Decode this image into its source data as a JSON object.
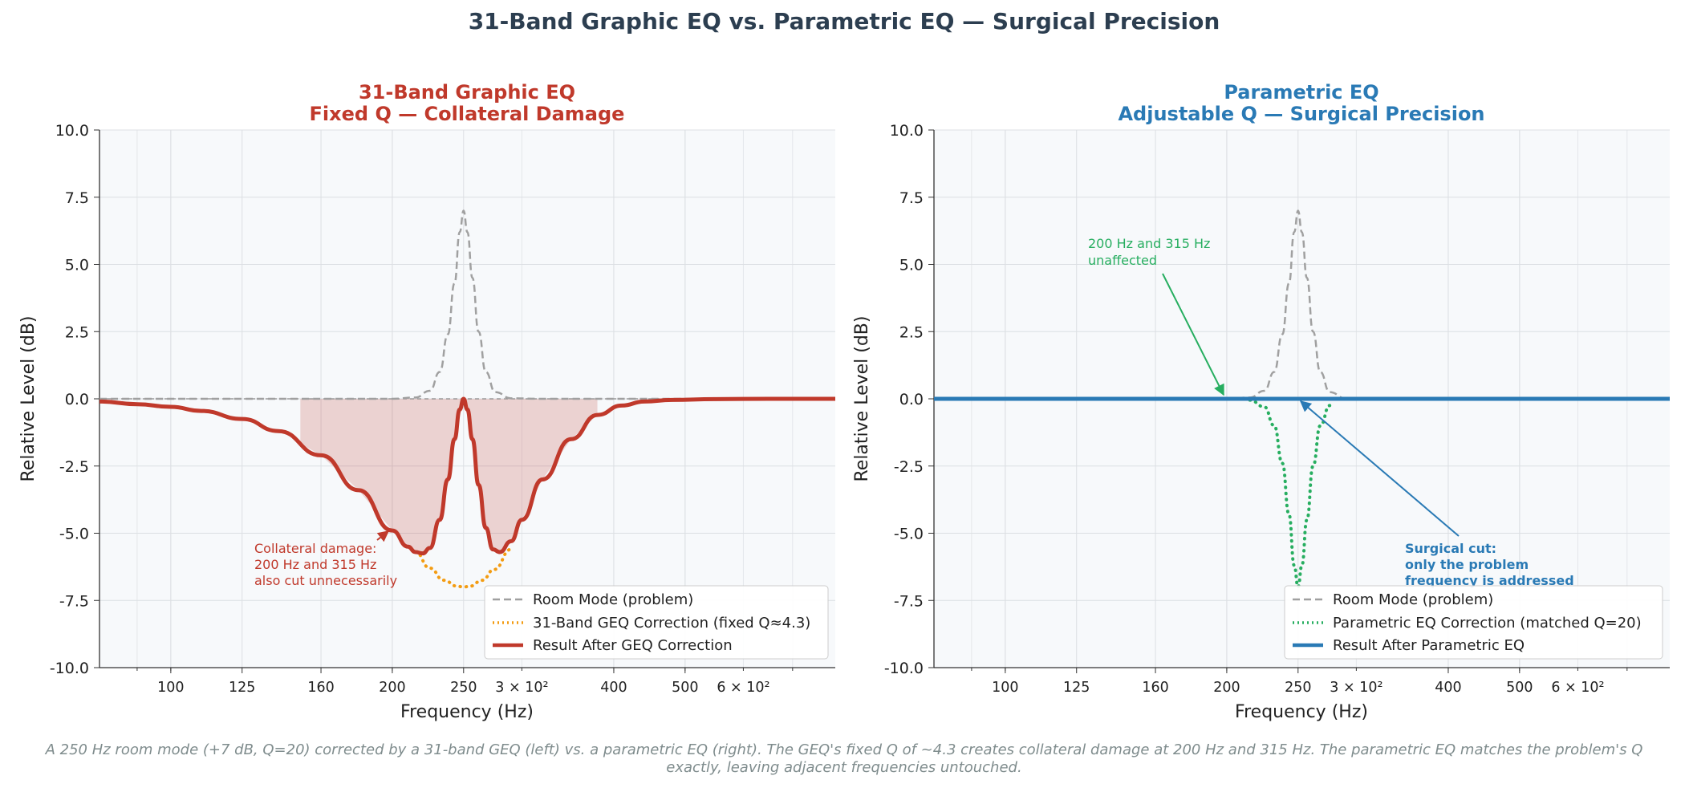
{
  "suptitle": "31-Band Graphic EQ vs. Parametric EQ — Surgical Precision",
  "caption": [
    "A 250 Hz room mode (+7 dB, Q=20) corrected by a 31-band GEQ (left) vs. a parametric EQ (right). The GEQ's fixed Q of ~4.3 creates collateral damage at 200 Hz and 315 Hz. The parametric EQ matches the problem's Q",
    "exactly, leaving adjacent frequencies untouched."
  ],
  "colors": {
    "title": "#2c3e50",
    "geq_red": "#c0392b",
    "param_blue": "#2a7ab5",
    "orange": "#f39c12",
    "green": "#27ae60",
    "mode_gray": "#a0a0a0",
    "panel_bg": "#f7f9fb"
  },
  "chart_data": [
    {
      "type": "line",
      "title_line1": "31-Band Graphic EQ",
      "title_line2": "Fixed Q — Collateral Damage",
      "xlabel": "Frequency (Hz)",
      "ylabel": "Relative Level (dB)",
      "xscale": "log",
      "xlim": [
        80,
        800
      ],
      "ylim": [
        -10,
        10
      ],
      "xticks": [
        100,
        125,
        160,
        200,
        250,
        400,
        500
      ],
      "xtick_labels": [
        "100",
        "125",
        "160",
        "200",
        "250",
        "400",
        "500"
      ],
      "extra_xtick_labels": [
        {
          "at": 300,
          "text": "3 × 10²"
        },
        {
          "at": 600,
          "text": "6 × 10²"
        }
      ],
      "yticks": [
        -10,
        -7.5,
        -5,
        -2.5,
        0,
        2.5,
        5,
        7.5,
        10
      ],
      "ytick_labels": [
        "-10.0",
        "-7.5",
        "-5.0",
        "-2.5",
        "0.0",
        "2.5",
        "5.0",
        "7.5",
        "10.0"
      ],
      "grid": true,
      "legend_position": "lower-right",
      "shaded_region": {
        "x_from": 150,
        "x_to": 380,
        "between": "Result After GEQ Correction and 0 dB"
      },
      "series": [
        {
          "name": "Room Mode (problem)",
          "style": "dashed",
          "x": [
            80,
            150,
            200,
            215,
            225,
            232,
            238,
            243,
            247,
            250,
            253,
            257,
            262,
            268,
            276,
            290,
            320,
            800
          ],
          "y": [
            0,
            0,
            0,
            0.05,
            0.3,
            1.0,
            2.4,
            4.3,
            6.2,
            7.0,
            6.2,
            4.5,
            2.5,
            1.0,
            0.25,
            0.02,
            0,
            0
          ]
        },
        {
          "name": "31-Band GEQ Correction (fixed Q≈4.3)",
          "style": "dotted",
          "x": [
            215,
            225,
            235,
            245,
            250,
            255,
            265,
            275,
            290
          ],
          "y": [
            -5.7,
            -6.3,
            -6.75,
            -6.97,
            -7.0,
            -6.97,
            -6.75,
            -6.35,
            -5.6
          ]
        },
        {
          "name": "Result After GEQ Correction",
          "style": "solid",
          "x": [
            80,
            90,
            100,
            110,
            125,
            140,
            160,
            180,
            200,
            210,
            215,
            220,
            225,
            232,
            238,
            243,
            247,
            250,
            253,
            257,
            262,
            268,
            274,
            280,
            290,
            300,
            320,
            350,
            380,
            410,
            440,
            480,
            550,
            650,
            800
          ],
          "y": [
            -0.1,
            -0.2,
            -0.3,
            -0.45,
            -0.75,
            -1.2,
            -2.1,
            -3.4,
            -4.9,
            -5.5,
            -5.7,
            -5.75,
            -5.55,
            -4.5,
            -3.0,
            -1.5,
            -0.4,
            0.0,
            -0.4,
            -1.5,
            -3.2,
            -4.8,
            -5.6,
            -5.7,
            -5.3,
            -4.5,
            -3.0,
            -1.5,
            -0.6,
            -0.25,
            -0.1,
            -0.04,
            -0.01,
            0,
            0
          ]
        }
      ],
      "annotations": [
        {
          "lines": [
            "Collateral damage:",
            "200 Hz and 315 Hz",
            "also cut unnecessarily"
          ],
          "arrow_to": {
            "x": 200,
            "y": -4.85
          }
        }
      ]
    },
    {
      "type": "line",
      "title_line1": "Parametric EQ",
      "title_line2": "Adjustable Q — Surgical Precision",
      "xlabel": "Frequency (Hz)",
      "ylabel": "Relative Level (dB)",
      "xscale": "log",
      "xlim": [
        80,
        800
      ],
      "ylim": [
        -10,
        10
      ],
      "xticks": [
        100,
        125,
        160,
        200,
        250,
        400,
        500
      ],
      "xtick_labels": [
        "100",
        "125",
        "160",
        "200",
        "250",
        "400",
        "500"
      ],
      "extra_xtick_labels": [
        {
          "at": 300,
          "text": "3 × 10²"
        },
        {
          "at": 600,
          "text": "6 × 10²"
        }
      ],
      "yticks": [
        -10,
        -7.5,
        -5,
        -2.5,
        0,
        2.5,
        5,
        7.5,
        10
      ],
      "ytick_labels": [
        "-10.0",
        "-7.5",
        "-5.0",
        "-2.5",
        "0.0",
        "2.5",
        "5.0",
        "7.5",
        "10.0"
      ],
      "grid": true,
      "legend_position": "lower-right",
      "series": [
        {
          "name": "Room Mode (problem)",
          "style": "dashed",
          "x": [
            80,
            150,
            200,
            215,
            225,
            232,
            238,
            243,
            247,
            250,
            253,
            257,
            262,
            268,
            276,
            290,
            320,
            800
          ],
          "y": [
            0,
            0,
            0,
            0.05,
            0.3,
            1.0,
            2.4,
            4.3,
            6.2,
            7.0,
            6.2,
            4.5,
            2.5,
            1.0,
            0.25,
            0.02,
            0,
            0
          ]
        },
        {
          "name": "Parametric EQ Correction (matched Q=20)",
          "style": "dotted",
          "x": [
            215,
            225,
            232,
            238,
            243,
            247,
            250,
            253,
            257,
            262,
            268,
            276
          ],
          "y": [
            -0.05,
            -0.3,
            -1.0,
            -2.4,
            -4.3,
            -6.2,
            -7.0,
            -6.2,
            -4.5,
            -2.5,
            -1.0,
            -0.25
          ]
        },
        {
          "name": "Result After Parametric EQ",
          "style": "solid",
          "x": [
            80,
            800
          ],
          "y": [
            0,
            0
          ]
        }
      ],
      "annotations": [
        {
          "lines": [
            "200 Hz and 315 Hz",
            "unaffected"
          ],
          "arrow_to": {
            "x": 200,
            "y": 0.1
          }
        },
        {
          "lines": [
            "Surgical cut:",
            "only the problem",
            "frequency is addressed"
          ],
          "arrow_to": {
            "x": 250,
            "y": -0.1
          }
        }
      ]
    }
  ]
}
